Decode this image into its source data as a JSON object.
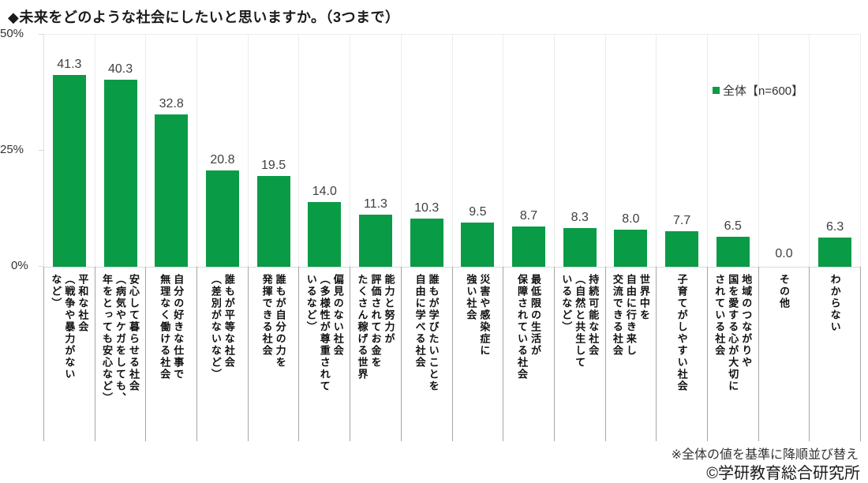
{
  "title": "◆未来をどのような社会にしたいと思いますか。（3つまで）",
  "legend": {
    "label": "全体【n=600】"
  },
  "y_axis": {
    "tick_labels": [
      "50%",
      "25%",
      "0%"
    ]
  },
  "colors": {
    "bar": "#0a9b46",
    "grid": "#ececec",
    "axis": "#d9d9d9",
    "label_divider": "#a6a6a6"
  },
  "chart_data": {
    "type": "bar",
    "title": "未来をどのような社会にしたいと思いますか。（3つまで）",
    "series_name": "全体【n=600】",
    "ylim": [
      0,
      50
    ],
    "y_ticks_percent": [
      0,
      25,
      50
    ],
    "grid": "vertical category dividers, top border at 50%",
    "legend_position": "inside-right",
    "categories": [
      "平和な社会\n（戦争や暴力がない\nなど）",
      "安心して暮らせる社会\n（病気やケガをしても、\n年をとっても安心など）",
      "自分の好きな仕事で\n無理なく働ける社会",
      "誰もが平等な社会\n（差別がないなど）",
      "誰もが自分の力を\n発揮できる社会",
      "偏見のない社会\n（多様性が尊重されて\nいるなど）",
      "能力と努力が\n評価されてお金を\nたくさん稼げる世界",
      "誰もが学びたいことを\n自由に学べる社会",
      "災害や感染症に\n強い社会",
      "最低限の生活が\n保障されている社会",
      "持続可能な社会\n（自然と共生して\nいるなど）",
      "世界中を\n自由に行き来し\n交流できる社会",
      "子育てがしやすい社会",
      "地域のつながりや\n国を愛する心が大切に\nされている社会",
      "その他",
      "わからない"
    ],
    "values": [
      41.3,
      40.3,
      32.8,
      20.8,
      19.5,
      14.0,
      11.3,
      10.3,
      9.5,
      8.7,
      8.3,
      8.0,
      7.7,
      6.5,
      0.0,
      6.3
    ]
  },
  "notes": {
    "sort_note": "※全体の値を基準に降順並び替え",
    "copyright": "©学研教育総合研究所"
  }
}
